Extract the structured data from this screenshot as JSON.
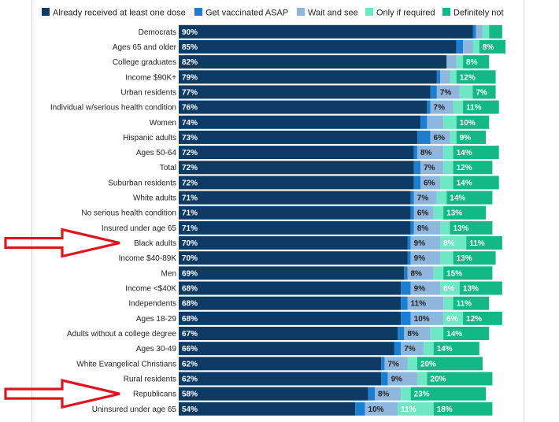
{
  "chart_data": {
    "type": "bar",
    "orientation": "horizontal",
    "stacked": true,
    "title": "",
    "xlabel": "",
    "ylabel": "",
    "xlim": [
      0,
      100
    ],
    "legend_position": "top",
    "colors": {
      "Already received at least one dose": "#0d3b66",
      "Get vaccinated ASAP": "#1a7fd1",
      "Wait and see": "#8fb7dd",
      "Only if required": "#6ee7c4",
      "Definitely not": "#12b886"
    },
    "label_colors": [
      "#ffffff",
      "#ffffff",
      "#222222",
      "#ffffff",
      "#ffffff"
    ],
    "categories": [
      "Democrats",
      "Ages 65 and older",
      "College graduates",
      "Income $90K+",
      "Urban residents",
      "Individual w/serious health condition",
      "Women",
      "Hispanic adults",
      "Ages 50-64",
      "Total",
      "Suburban residents",
      "White adults",
      "No serious health condition",
      "Insured under age 65",
      "Black adults",
      "Income $40-89K",
      "Men",
      "Income <$40K",
      "Independents",
      "Ages 18-29",
      "Adults without a college degree",
      "Ages 30-49",
      "White Evangelical Christians",
      "Rural residents",
      "Republicans",
      "Uninsured under age 65"
    ],
    "series": [
      {
        "name": "Already received at least one dose",
        "values": [
          90,
          85,
          82,
          79,
          77,
          76,
          74,
          73,
          72,
          72,
          72,
          71,
          71,
          71,
          70,
          70,
          69,
          68,
          68,
          68,
          67,
          66,
          62,
          62,
          58,
          54
        ],
        "labels": [
          "90%",
          "85%",
          "82%",
          "79%",
          "77%",
          "76%",
          "74%",
          "73%",
          "72%",
          "72%",
          "72%",
          "71%",
          "71%",
          "71%",
          "70%",
          "70%",
          "69%",
          "68%",
          "68%",
          "68%",
          "67%",
          "66%",
          "62%",
          "62%",
          "58%",
          "54%"
        ]
      },
      {
        "name": "Get vaccinated ASAP",
        "values": [
          1,
          2,
          0,
          1,
          2,
          1,
          2,
          4,
          1,
          2,
          2,
          1,
          1,
          1,
          1,
          1,
          1,
          3,
          2,
          3,
          2,
          2,
          1,
          2,
          2,
          3
        ],
        "labels": [
          "",
          "",
          "",
          "",
          "",
          "",
          "",
          "",
          "",
          "",
          "",
          "",
          "",
          "",
          "",
          "",
          "",
          "",
          "",
          "",
          "",
          "",
          "",
          "",
          "",
          ""
        ]
      },
      {
        "name": "Wait and see",
        "values": [
          2,
          3,
          3,
          3,
          7,
          7,
          5,
          6,
          8,
          7,
          6,
          7,
          6,
          8,
          9,
          9,
          8,
          9,
          11,
          10,
          8,
          7,
          7,
          9,
          8,
          10
        ],
        "labels": [
          "",
          "",
          "",
          "",
          "7%",
          "7%",
          "",
          "6%",
          "8%",
          "7%",
          "6%",
          "7%",
          "6%",
          "8%",
          "9%",
          "9%",
          "8%",
          "9%",
          "11%",
          "10%",
          "8%",
          "7%",
          "7%",
          "9%",
          "8%",
          "10%"
        ]
      },
      {
        "name": "Only if required",
        "values": [
          2,
          2,
          2,
          2,
          4,
          3,
          4,
          2,
          3,
          3,
          4,
          3,
          3,
          3,
          8,
          4,
          3,
          6,
          3,
          6,
          4,
          3,
          3,
          3,
          3,
          11
        ],
        "labels": [
          "",
          "",
          "",
          "",
          "",
          "",
          "",
          "",
          "",
          "",
          "",
          "",
          "",
          "",
          "8%",
          "",
          "",
          "6%",
          "",
          "6%",
          "",
          "",
          "",
          "",
          "",
          "11%"
        ]
      },
      {
        "name": "Definitely not",
        "values": [
          4,
          8,
          8,
          12,
          7,
          11,
          10,
          9,
          14,
          12,
          14,
          14,
          13,
          13,
          11,
          13,
          15,
          13,
          11,
          12,
          14,
          14,
          20,
          20,
          23,
          18
        ],
        "labels": [
          "",
          "8%",
          "8%",
          "12%",
          "7%",
          "11%",
          "10%",
          "9%",
          "14%",
          "12%",
          "14%",
          "14%",
          "13%",
          "13%",
          "11%",
          "13%",
          "15%",
          "13%",
          "11%",
          "12%",
          "14%",
          "14%",
          "20%",
          "20%",
          "23%",
          "18%"
        ]
      }
    ],
    "annotations": [
      {
        "type": "arrow",
        "color": "#e0141e",
        "points_to": "Black adults"
      },
      {
        "type": "arrow",
        "color": "#e0141e",
        "points_to": "Republicans"
      }
    ]
  }
}
